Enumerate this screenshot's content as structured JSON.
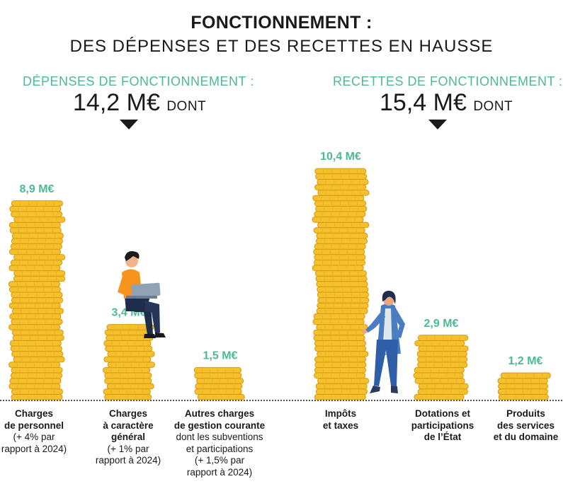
{
  "header": {
    "title": "FONCTIONNEMENT :",
    "subtitle": "DES DÉPENSES ET DES RECETTES EN HAUSSE"
  },
  "depenses": {
    "label": "DÉPENSES DE FONCTIONNEMENT :",
    "total": "14,2 M€",
    "suffix": "DONT"
  },
  "recettes": {
    "label": "RECETTES DE FONCTIONNEMENT :",
    "total": "15,4 M€",
    "suffix": "DONT"
  },
  "colors": {
    "accent": "#4cba94",
    "coin": "#f5c02c",
    "coin_dark": "#d89a10",
    "text": "#1a1a1a"
  },
  "chart_data": {
    "type": "bar",
    "unit": "M€",
    "categories": [
      {
        "bold": [
          "Charges",
          "de personnel"
        ],
        "normal": [
          "(+ 4% par",
          "rapport à 2024)"
        ]
      },
      {
        "bold": [
          "Charges",
          "à caractère",
          "général"
        ],
        "normal": [
          "(+ 1% par",
          "rapport à 2024)"
        ]
      },
      {
        "bold": [
          "Autres charges",
          "de gestion courante"
        ],
        "normal": [
          "dont les subventions",
          "et participations",
          "(+ 1,5% par",
          "rapport à 2024)"
        ]
      },
      {
        "bold": [
          "Impôts",
          "et taxes"
        ],
        "normal": []
      },
      {
        "bold": [
          "Dotations et",
          "participations",
          "de l’État"
        ],
        "normal": []
      },
      {
        "bold": [
          "Produits",
          "des services",
          "et du domaine"
        ],
        "normal": []
      }
    ],
    "values": [
      8.9,
      3.4,
      1.5,
      10.4,
      2.9,
      1.2
    ],
    "labels": [
      "8,9 M€",
      "3,4 M€",
      "1,5 M€",
      "10,4 M€",
      "2,9 M€",
      "1,2 M€"
    ],
    "groups": [
      {
        "key": "depenses",
        "indices": [
          0,
          1,
          2
        ]
      },
      {
        "key": "recettes",
        "indices": [
          3,
          4,
          5
        ]
      }
    ]
  }
}
